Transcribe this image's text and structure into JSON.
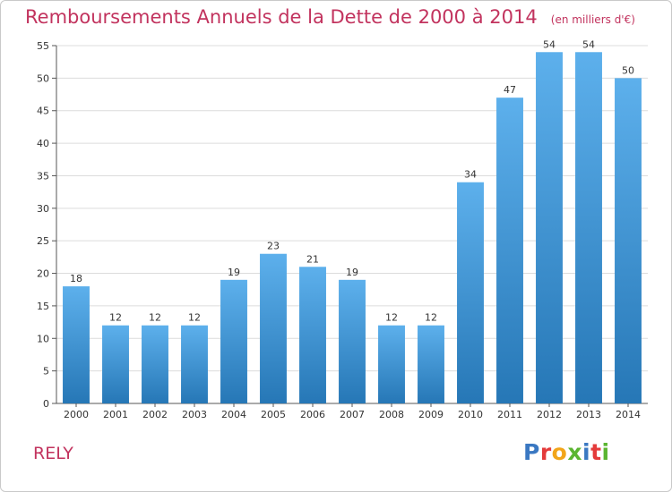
{
  "header": {
    "title": "Remboursements Annuels de la Dette de 2000 à 2014",
    "subtitle": "(en milliers d'€)"
  },
  "footer": {
    "commune": "RELY",
    "logo_text": "Proxiti",
    "logo_colors": [
      "#3a78c2",
      "#e43b3b",
      "#f2a51a",
      "#5bb531",
      "#3a78c2",
      "#e43b3b",
      "#5bb531"
    ]
  },
  "colors": {
    "title": "#c2335e",
    "bar_top": "#5db0ec",
    "bar_bottom": "#2677b6",
    "grid": "#dcdcdc",
    "axis": "#555555"
  },
  "chart_data": {
    "type": "bar",
    "title": "Remboursements Annuels de la Dette de 2000 à 2014",
    "subtitle": "(en milliers d'€)",
    "categories": [
      "2000",
      "2001",
      "2002",
      "2003",
      "2004",
      "2005",
      "2006",
      "2007",
      "2008",
      "2009",
      "2010",
      "2011",
      "2012",
      "2013",
      "2014"
    ],
    "values": [
      18,
      12,
      12,
      12,
      19,
      23,
      21,
      19,
      12,
      12,
      34,
      47,
      54,
      54,
      50
    ],
    "ylim": [
      0,
      55
    ],
    "yticks": [
      0,
      5,
      10,
      15,
      20,
      25,
      30,
      35,
      40,
      45,
      50,
      55
    ],
    "grid": true,
    "xlabel": "",
    "ylabel": ""
  }
}
